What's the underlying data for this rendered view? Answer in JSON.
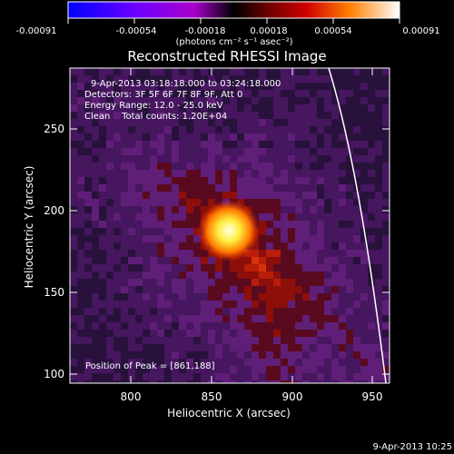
{
  "colorbar": {
    "ticks": [
      "-0.00091",
      "-0.00054",
      "-0.00018",
      "0.00018",
      "0.00054",
      "0.00091"
    ],
    "units": "(photons cm⁻² s⁻¹ asec⁻²)"
  },
  "plot": {
    "title": "Reconstructed RHESSI Image",
    "xlabel": "Heliocentric X (arcsec)",
    "ylabel": "Heliocentric Y (arcsec)",
    "xticks": [
      "800",
      "850",
      "900",
      "950"
    ],
    "yticks": [
      "250",
      "200",
      "150",
      "100"
    ],
    "xlim": [
      765,
      955
    ],
    "ylim": [
      96,
      289
    ]
  },
  "annotations": {
    "time_range": "9-Apr-2013 03:18:18.000 to 03:24:18.000",
    "detectors": "Detectors: 3F 5F 6F 7F 8F 9F, Att 0",
    "energy": "Energy Range: 12.0 - 25.0 keV",
    "clean": "Clean    Total counts: 1.20E+04",
    "peak": "Position of Peak = [861,188]"
  },
  "peak_position": {
    "x": 861,
    "y": 188
  },
  "footer": {
    "timestamp": "9-Apr-2013 10:25"
  },
  "colors": {
    "background": "#000000",
    "text": "#ffffff",
    "limb": "#ffffff"
  }
}
